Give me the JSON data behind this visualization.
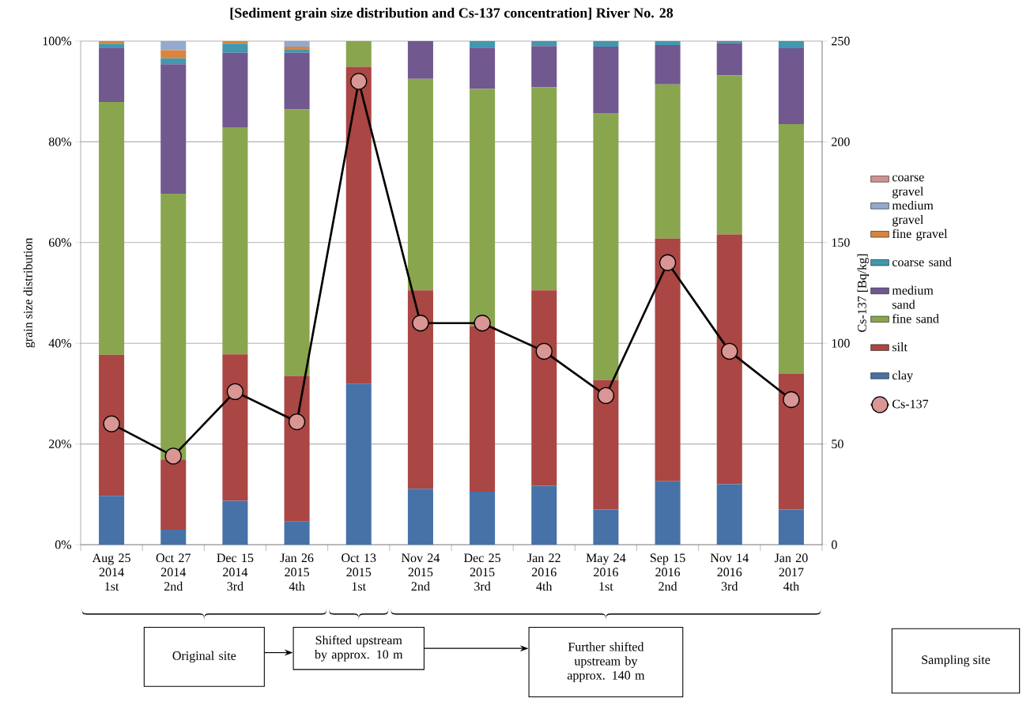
{
  "chart_data": {
    "type": "bar",
    "stacked": true,
    "title": "[Sediment grain size distribution and Cs-137 concentration] River No. 28",
    "ylabel": "grain size distribution",
    "y2label": "Cs-137 [Bq/kg]",
    "categories": [
      "Aug 25 2014 1st",
      "Oct 27 2014 2nd",
      "Dec 15 2014 3rd",
      "Jan 26 2015 4th",
      "Oct 13 2015 1st",
      "Nov 24 2015 2nd",
      "Dec 25 2015 3rd",
      "Jan 22 2016 4th",
      "May 24 2016 1st",
      "Sep 15 2016 2nd",
      "Nov 14 2016 3rd",
      "Jan 20 2017 4th"
    ],
    "series": [
      {
        "name": "clay",
        "color": "#4672a8",
        "values": [
          9.7,
          3.0,
          8.7,
          4.6,
          32.0,
          11.1,
          10.5,
          11.7,
          7.0,
          12.6,
          12.0,
          7.0
        ]
      },
      {
        "name": "silt",
        "color": "#aa4643",
        "values": [
          28.0,
          13.9,
          29.1,
          28.9,
          62.9,
          39.4,
          32.9,
          38.8,
          25.7,
          48.2,
          49.6,
          26.9
        ]
      },
      {
        "name": "fine sand",
        "color": "#89a54e",
        "values": [
          50.2,
          52.8,
          45.1,
          52.9,
          5.1,
          42.0,
          47.1,
          40.3,
          53.0,
          30.6,
          31.6,
          49.6
        ]
      },
      {
        "name": "medium sand",
        "color": "#71588f",
        "values": [
          10.8,
          25.7,
          14.8,
          11.3,
          0,
          7.5,
          8.2,
          8.2,
          13.2,
          7.8,
          6.4,
          15.1
        ]
      },
      {
        "name": "coarse sand",
        "color": "#4198af",
        "values": [
          0.8,
          1.2,
          1.8,
          0.7,
          0,
          0,
          1.3,
          1.0,
          1.1,
          0.8,
          0.4,
          1.4
        ]
      },
      {
        "name": "fine gravel",
        "color": "#db843d",
        "values": [
          0.5,
          1.6,
          0.5,
          0.5,
          0,
          0,
          0,
          0,
          0,
          0,
          0,
          0
        ]
      },
      {
        "name": "medium gravel",
        "color": "#93a9cf",
        "values": [
          0,
          1.8,
          0,
          1.1,
          0,
          0,
          0,
          0,
          0,
          0,
          0,
          0
        ]
      },
      {
        "name": "coarse gravel",
        "color": "#d19392",
        "values": [
          0,
          0,
          0,
          0,
          0,
          0,
          0,
          0,
          0,
          0,
          0,
          0
        ]
      },
      {
        "name": "Cs-137",
        "type": "line",
        "axis": "y2",
        "marker": "circle",
        "color": "#000000",
        "values": [
          60,
          44,
          76,
          61,
          230,
          110,
          110,
          96,
          74,
          140,
          96,
          72
        ]
      }
    ],
    "ylim": [
      0,
      100
    ],
    "yticks": [
      {
        "value": 0,
        "label": "0%"
      },
      {
        "value": 20,
        "label": "20%"
      },
      {
        "value": 40,
        "label": "40%"
      },
      {
        "value": 60,
        "label": "60%"
      },
      {
        "value": 80,
        "label": "80%"
      },
      {
        "value": 100,
        "label": "100%"
      }
    ],
    "y2lim": [
      0,
      250
    ],
    "y2ticks": [
      0,
      50,
      100,
      150,
      200,
      250
    ],
    "grid": "y",
    "legend": "right",
    "annotations": [
      "Original site",
      "Shifted upstream by approx. 10 m",
      "Further shifted upstream by approx. 140 m",
      "Sampling site"
    ]
  }
}
